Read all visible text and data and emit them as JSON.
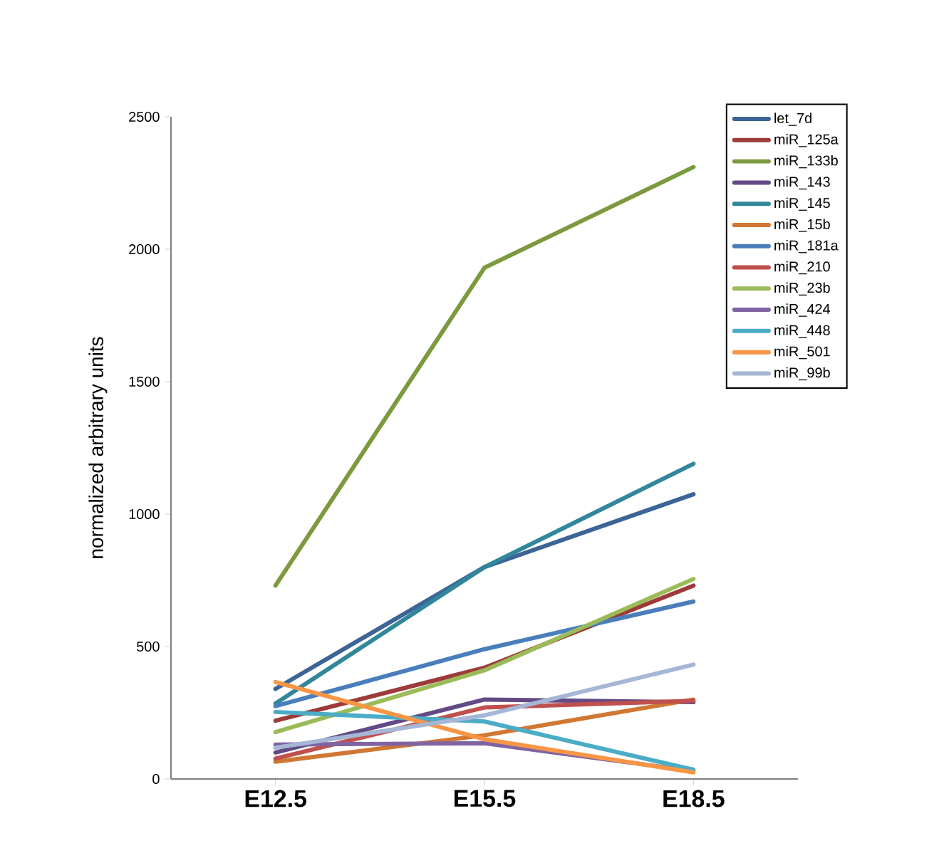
{
  "chart_data": {
    "type": "line",
    "ylabel": "normalized arbitrary units",
    "categories": [
      "E12.5",
      "E15.5",
      "E18.5"
    ],
    "ylim": [
      0,
      2500
    ],
    "yticks": [
      0,
      500,
      1000,
      1500,
      2000,
      2500
    ],
    "grid": false,
    "legend": "right",
    "marker": "none",
    "line_style": "solid",
    "series": [
      {
        "name": "let_7d",
        "color": "#3c6496",
        "values": [
          340,
          800,
          1075
        ]
      },
      {
        "name": "miR_125a",
        "color": "#9c3b3a",
        "values": [
          220,
          420,
          730
        ]
      },
      {
        "name": "miR_133b",
        "color": "#7b9a3e",
        "values": [
          730,
          1930,
          2310
        ]
      },
      {
        "name": "miR_143",
        "color": "#644a85",
        "values": [
          100,
          300,
          290
        ]
      },
      {
        "name": "miR_145",
        "color": "#31869b",
        "values": [
          285,
          800,
          1190
        ]
      },
      {
        "name": "miR_15b",
        "color": "#d07833",
        "values": [
          65,
          165,
          300
        ]
      },
      {
        "name": "miR_181a",
        "color": "#4a7ebb",
        "values": [
          275,
          490,
          670
        ]
      },
      {
        "name": "miR_210",
        "color": "#c0504d",
        "values": [
          77,
          270,
          295
        ]
      },
      {
        "name": "miR_23b",
        "color": "#9bbb59",
        "values": [
          177,
          410,
          755
        ]
      },
      {
        "name": "miR_424",
        "color": "#8064a2",
        "values": [
          130,
          135,
          30
        ]
      },
      {
        "name": "miR_448",
        "color": "#4bacc6",
        "values": [
          253,
          217,
          35
        ]
      },
      {
        "name": "miR_501",
        "color": "#f79646",
        "values": [
          366,
          150,
          25
        ]
      },
      {
        "name": "miR_99b",
        "color": "#a5b6d6",
        "values": [
          118,
          240,
          432
        ]
      }
    ]
  }
}
